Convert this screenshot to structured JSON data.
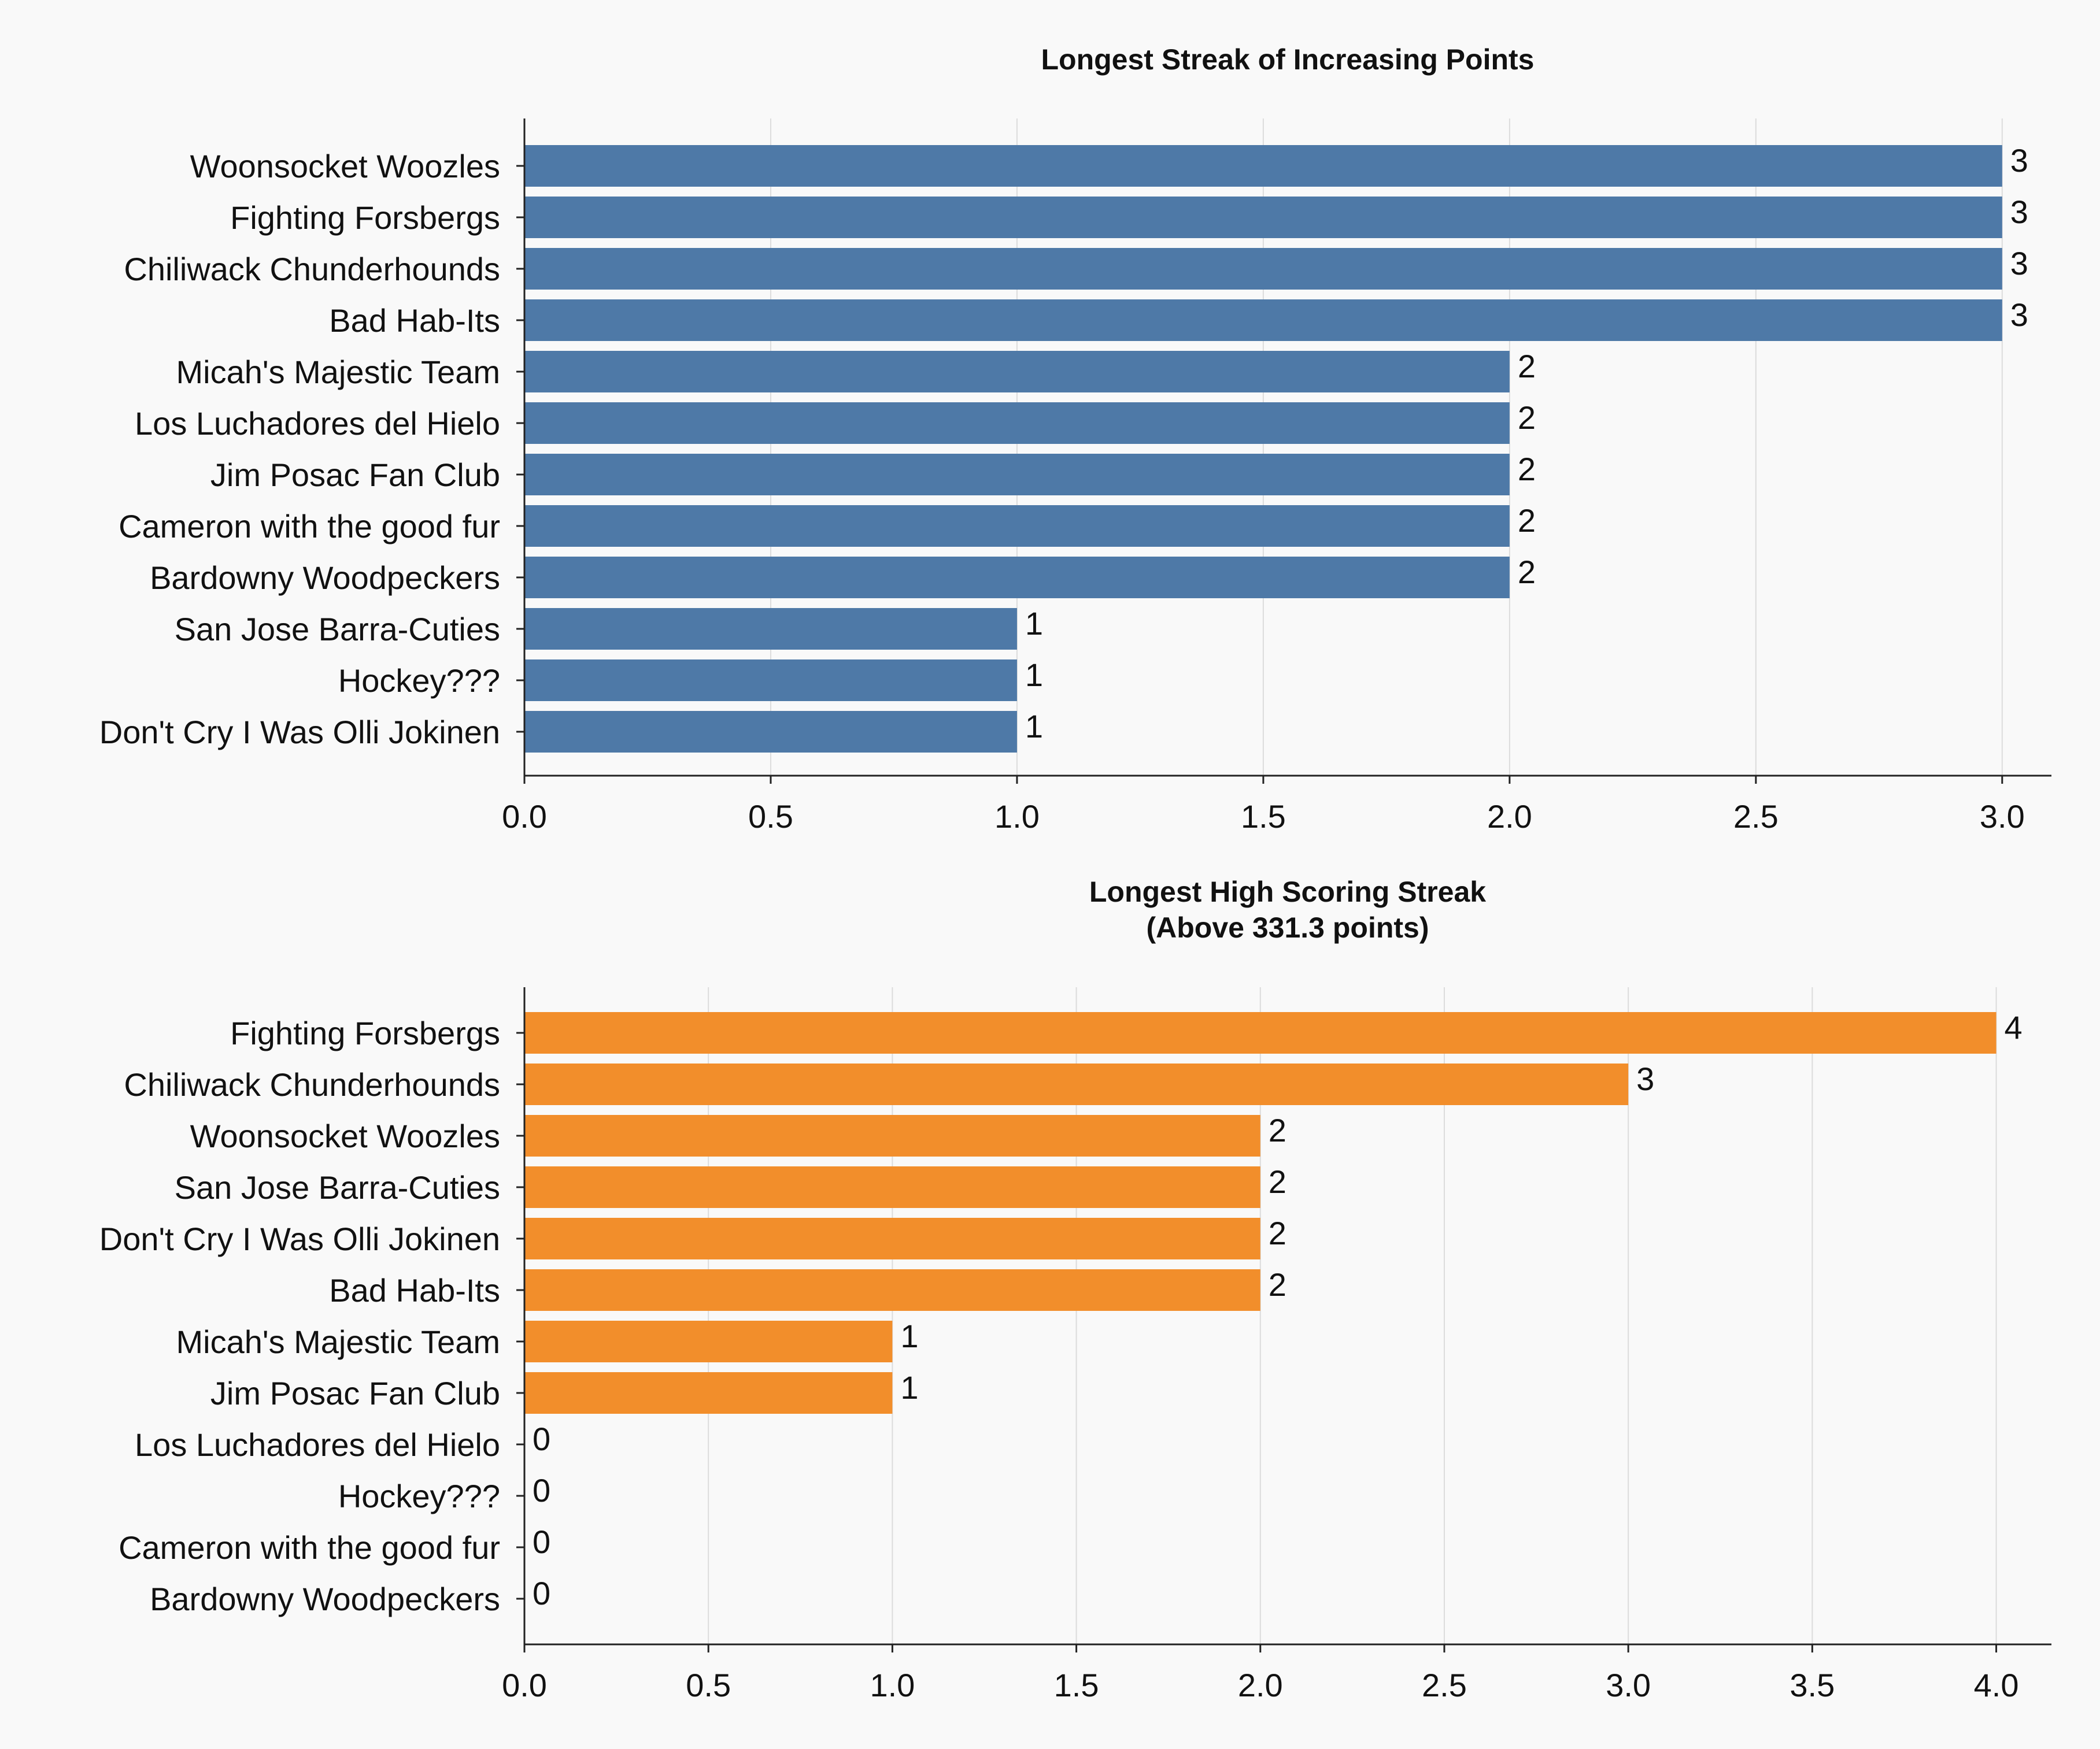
{
  "chart_data": [
    {
      "type": "bar",
      "orientation": "horizontal",
      "title": "Longest Streak of Increasing Points",
      "categories": [
        "Woonsocket Woozles",
        "Fighting Forsbergs",
        "Chiliwack Chunderhounds",
        "Bad Hab-Its",
        "Micah's Majestic Team",
        "Los Luchadores del Hielo",
        "Jim Posac Fan Club",
        "Cameron with the good fur",
        "Bardowny Woodpeckers",
        "San Jose Barra-Cuties",
        "Hockey???",
        "Don't Cry I Was Olli Jokinen"
      ],
      "values": [
        3,
        3,
        3,
        3,
        2,
        2,
        2,
        2,
        2,
        1,
        1,
        1
      ],
      "xlim": [
        0,
        3.1
      ],
      "xticks": [
        "0.0",
        "0.5",
        "1.0",
        "1.5",
        "2.0",
        "2.5",
        "3.0"
      ],
      "xtick_values": [
        0,
        0.5,
        1,
        1.5,
        2,
        2.5,
        3
      ],
      "color": "#4e79a7",
      "grid": "vertical"
    },
    {
      "type": "bar",
      "orientation": "horizontal",
      "title": "Longest High Scoring Streak",
      "subtitle": "(Above 331.3 points)",
      "categories": [
        "Fighting Forsbergs",
        "Chiliwack Chunderhounds",
        "Woonsocket Woozles",
        "San Jose Barra-Cuties",
        "Don't Cry I Was Olli Jokinen",
        "Bad Hab-Its",
        "Micah's Majestic Team",
        "Jim Posac Fan Club",
        "Los Luchadores del Hielo",
        "Hockey???",
        "Cameron with the good fur",
        "Bardowny Woodpeckers"
      ],
      "values": [
        4,
        3,
        2,
        2,
        2,
        2,
        1,
        1,
        0,
        0,
        0,
        0
      ],
      "xlim": [
        0,
        4.15
      ],
      "xticks": [
        "0.0",
        "0.5",
        "1.0",
        "1.5",
        "2.0",
        "2.5",
        "3.0",
        "3.5",
        "4.0"
      ],
      "xtick_values": [
        0,
        0.5,
        1,
        1.5,
        2,
        2.5,
        3,
        3.5,
        4
      ],
      "color": "#f28e2b",
      "grid": "vertical"
    }
  ]
}
